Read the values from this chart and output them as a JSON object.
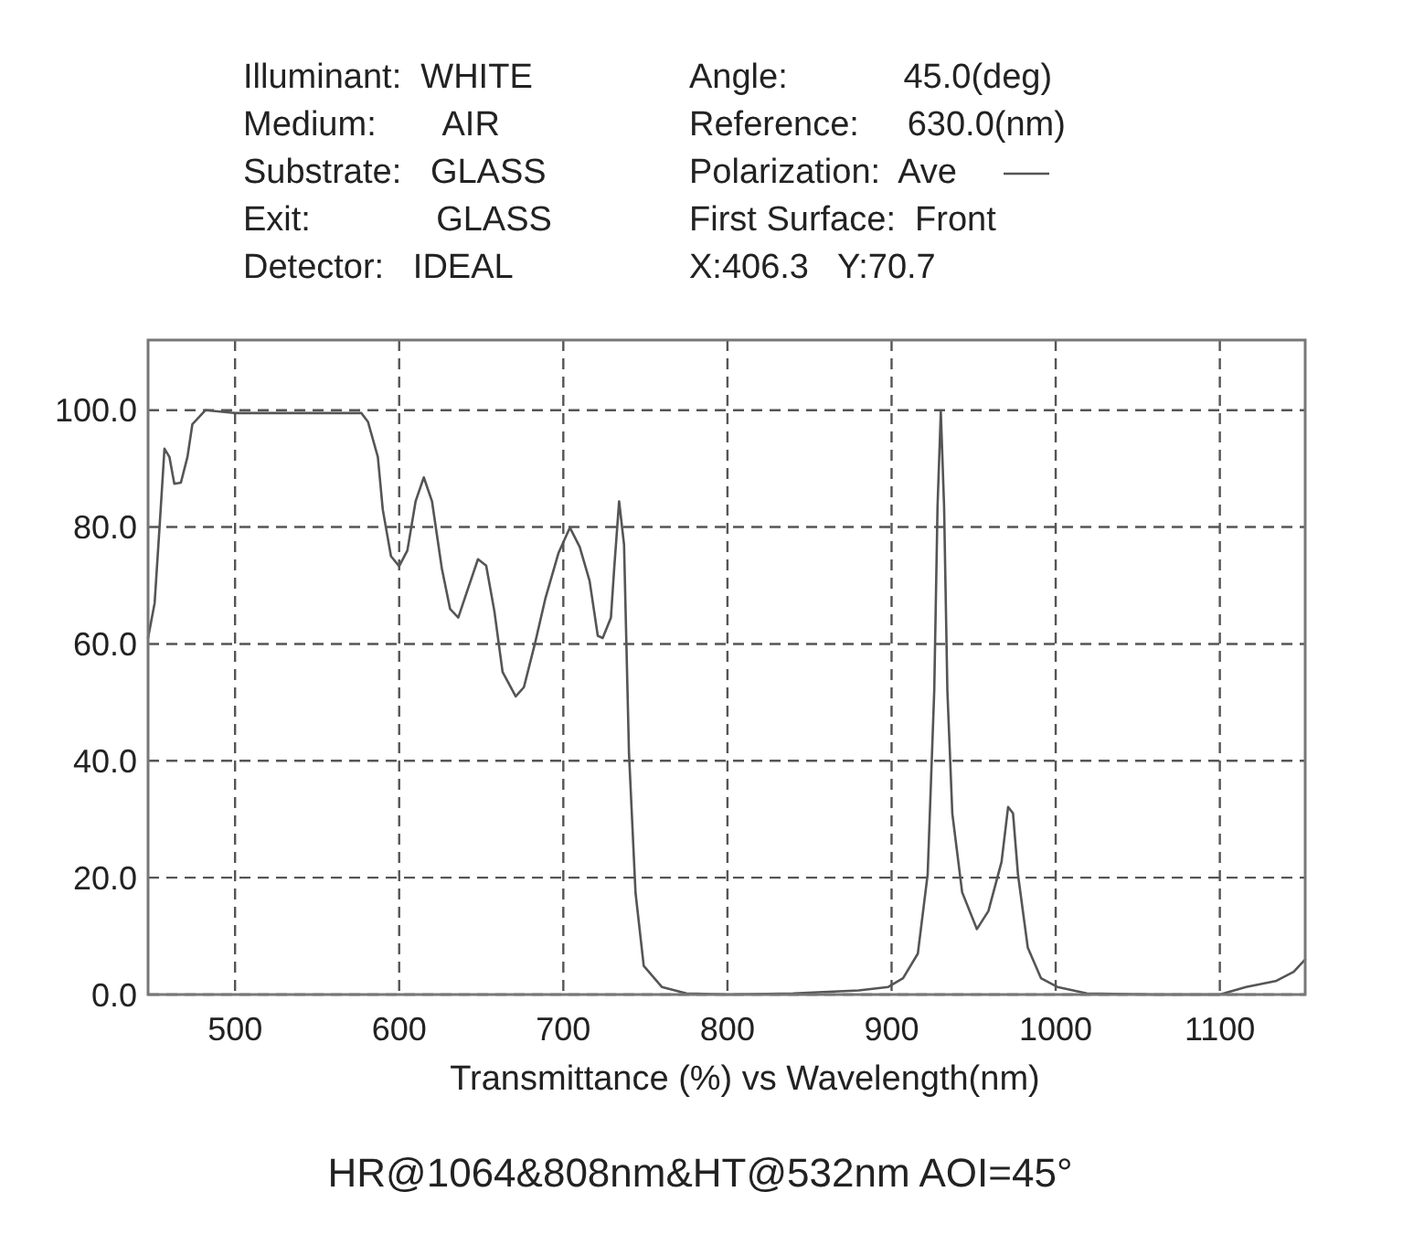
{
  "chart_data": {
    "type": "line",
    "title": "HR@1064&808nm&HT@532nm AOI=45°",
    "xlabel": "Transmittance (%) vs Wavelength(nm)",
    "annotations": [
      "Illuminant:  WHITE",
      "Medium:       AIR",
      "Substrate:   GLASS",
      "Exit:             GLASS",
      "Detector:   IDEAL",
      "Angle:            45.0(deg)",
      "Reference:     630.0(nm)",
      "Polarization:  Ave",
      "First Surface:  Front",
      "X:406.3   Y:70.7"
    ],
    "xlim": [
      447,
      1152
    ],
    "xticks": [
      500,
      600,
      700,
      800,
      900,
      1000,
      1100
    ],
    "ylim": [
      0,
      112
    ],
    "yticks": [
      {
        "value": 0,
        "label": "0.0"
      },
      {
        "value": 20,
        "label": "20.0"
      },
      {
        "value": 40,
        "label": "40.0"
      },
      {
        "value": 60,
        "label": "60.0"
      },
      {
        "value": 80,
        "label": "80.0"
      },
      {
        "value": 100,
        "label": "100.0"
      }
    ],
    "grid": true,
    "line_style": "solid",
    "marker": "none",
    "series": [
      {
        "color": "#555555",
        "x": [
          447,
          451,
          454,
          457,
          460,
          463,
          467,
          471,
          474,
          482,
          500,
          540,
          577,
          581,
          587,
          590,
          595,
          600,
          605,
          610,
          615,
          620,
          626,
          631,
          636,
          641,
          648,
          653,
          658,
          663,
          671,
          676,
          683,
          689,
          697,
          704,
          710,
          716,
          721,
          724,
          729,
          731,
          734,
          737,
          740,
          744,
          749,
          760,
          775,
          800,
          840,
          880,
          898,
          907,
          916,
          922,
          926,
          928,
          930,
          932,
          934,
          937,
          943,
          952,
          959,
          967,
          971,
          974,
          977,
          983,
          991,
          1001,
          1019,
          1060,
          1100,
          1116,
          1134,
          1145,
          1152
        ],
        "values": [
          61,
          67,
          80,
          93.4,
          92,
          87.4,
          87.6,
          92,
          97.6,
          100,
          99.5,
          99.5,
          99.5,
          98,
          92,
          83,
          75,
          73.3,
          76,
          84.4,
          88.5,
          84.4,
          72.9,
          66,
          64.5,
          68.7,
          74.5,
          73.4,
          65.6,
          55.2,
          51,
          52.6,
          60.4,
          67.7,
          75.5,
          79.9,
          76.6,
          70.8,
          61.4,
          61,
          64.5,
          72.9,
          84.4,
          77,
          41.4,
          17.4,
          4.9,
          1.3,
          0.2,
          0,
          0.2,
          0.7,
          1.3,
          2.8,
          7,
          20.6,
          52,
          83.5,
          99.7,
          83.5,
          52,
          31,
          17.5,
          11.2,
          14.3,
          22.7,
          32.1,
          31,
          20.6,
          8,
          2.8,
          1.3,
          0.2,
          0,
          0,
          1.3,
          2.3,
          3.9,
          6
        ]
      }
    ]
  }
}
